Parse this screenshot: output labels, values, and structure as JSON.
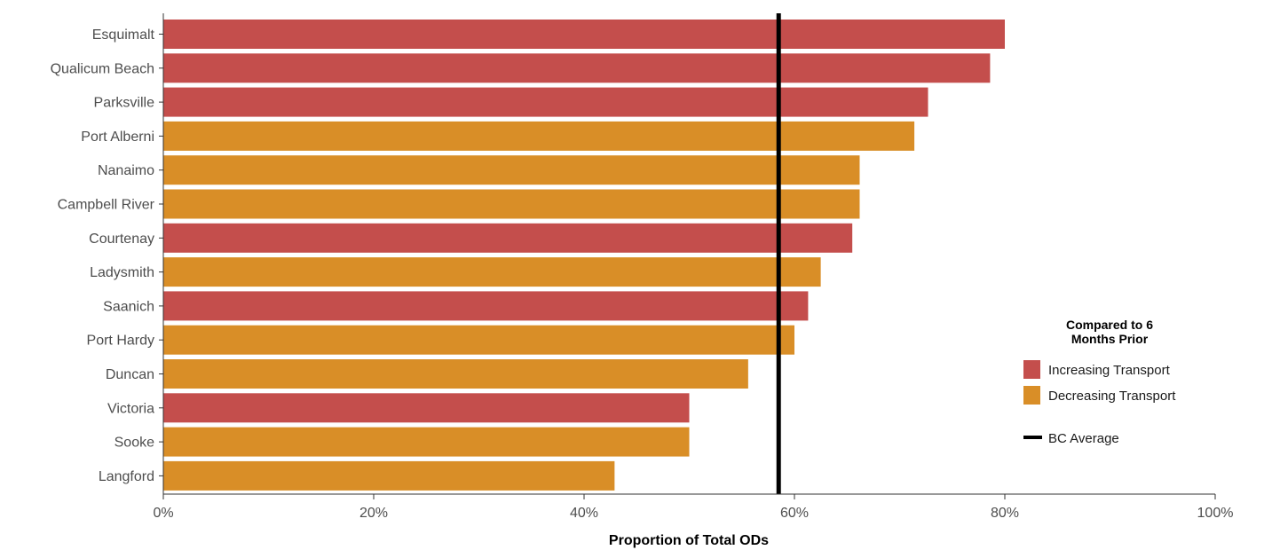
{
  "chart_data": {
    "type": "bar",
    "orientation": "horizontal",
    "title": "",
    "xlabel": "Proportion of Total ODs",
    "ylabel": "",
    "xlim": [
      0,
      100
    ],
    "x_ticks": [
      "0%",
      "20%",
      "40%",
      "60%",
      "80%",
      "100%"
    ],
    "x_tick_values": [
      0,
      20,
      40,
      60,
      80,
      100
    ],
    "grid": false,
    "categories": [
      "Esquimalt",
      "Qualicum Beach",
      "Parksville",
      "Port Alberni",
      "Nanaimo",
      "Campbell River",
      "Courtenay",
      "Ladysmith",
      "Saanich",
      "Port Hardy",
      "Duncan",
      "Victoria",
      "Sooke",
      "Langford"
    ],
    "values": [
      80.0,
      78.6,
      72.7,
      71.4,
      66.2,
      66.2,
      65.5,
      62.5,
      61.3,
      60.0,
      55.6,
      50.0,
      50.0,
      42.9
    ],
    "groups": [
      "Increasing Transport",
      "Increasing Transport",
      "Increasing Transport",
      "Decreasing Transport",
      "Decreasing Transport",
      "Decreasing Transport",
      "Increasing Transport",
      "Decreasing Transport",
      "Increasing Transport",
      "Decreasing Transport",
      "Decreasing Transport",
      "Increasing Transport",
      "Decreasing Transport",
      "Decreasing Transport"
    ],
    "reference_line": {
      "label": "BC Average",
      "value": 58.5,
      "color": "#000000"
    },
    "legend": {
      "title": "Compared to 6 Months Prior",
      "placement": "right",
      "entries": [
        {
          "label": "Increasing Transport",
          "color": "#c44e4c"
        },
        {
          "label": "Decreasing Transport",
          "color": "#d98e27"
        }
      ],
      "line_entry": "BC Average"
    }
  }
}
